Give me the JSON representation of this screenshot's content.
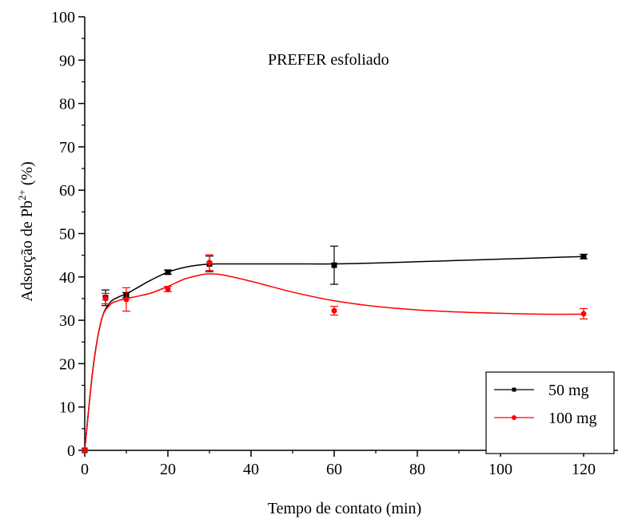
{
  "chart_data": {
    "type": "scatter",
    "annotation": "PREFER esfoliado",
    "xlabel": "Tempo de contato (min)",
    "ylabel_main": "Adsorção de Pb",
    "ylabel_sup": "2+",
    "ylabel_unit": " (%)",
    "xlim": [
      0,
      130
    ],
    "ylim": [
      0,
      100
    ],
    "xticks": [
      0,
      20,
      40,
      60,
      80,
      100,
      120
    ],
    "yticks": [
      0,
      10,
      20,
      30,
      40,
      50,
      60,
      70,
      80,
      90,
      100
    ],
    "grid": false,
    "legend_position": "bottom-right",
    "series": [
      {
        "name": "50 mg",
        "color": "#000000",
        "marker": "square",
        "x": [
          0,
          5,
          10,
          20,
          30,
          60,
          120
        ],
        "y": [
          0,
          35.2,
          35.8,
          41.1,
          43.0,
          42.7,
          44.7
        ],
        "err": [
          0,
          1.8,
          0.6,
          0.5,
          1.8,
          4.4,
          0.5
        ],
        "fit": [
          [
            0,
            0
          ],
          [
            2,
            19
          ],
          [
            4,
            30
          ],
          [
            6,
            34
          ],
          [
            8,
            35.3
          ],
          [
            10,
            36.1
          ],
          [
            13,
            37.7
          ],
          [
            16,
            39.3
          ],
          [
            20,
            41.1
          ],
          [
            24,
            42.2
          ],
          [
            28,
            42.8
          ],
          [
            32,
            43.0
          ],
          [
            40,
            43.0
          ],
          [
            50,
            43.0
          ],
          [
            60,
            43.0
          ],
          [
            70,
            43.2
          ],
          [
            80,
            43.5
          ],
          [
            90,
            43.8
          ],
          [
            100,
            44.1
          ],
          [
            110,
            44.4
          ],
          [
            120,
            44.7
          ]
        ]
      },
      {
        "name": "100 mg",
        "color": "#ff0000",
        "marker": "circle",
        "x": [
          0,
          5,
          10,
          20,
          30,
          60,
          120
        ],
        "y": [
          0,
          35.0,
          34.8,
          37.2,
          43.3,
          32.2,
          31.5
        ],
        "err": [
          0,
          1.2,
          2.7,
          0.6,
          1.8,
          1.0,
          1.2
        ],
        "fit": [
          [
            0,
            0
          ],
          [
            2,
            19
          ],
          [
            4,
            30
          ],
          [
            6,
            33.5
          ],
          [
            8,
            34.5
          ],
          [
            10,
            35.0
          ],
          [
            13,
            35.6
          ],
          [
            16,
            36.3
          ],
          [
            20,
            37.8
          ],
          [
            24,
            39.5
          ],
          [
            28,
            40.5
          ],
          [
            30,
            40.7
          ],
          [
            33,
            40.5
          ],
          [
            40,
            39.0
          ],
          [
            50,
            36.5
          ],
          [
            60,
            34.5
          ],
          [
            70,
            33.2
          ],
          [
            80,
            32.4
          ],
          [
            90,
            31.9
          ],
          [
            100,
            31.6
          ],
          [
            110,
            31.4
          ],
          [
            120,
            31.4
          ]
        ]
      }
    ]
  }
}
